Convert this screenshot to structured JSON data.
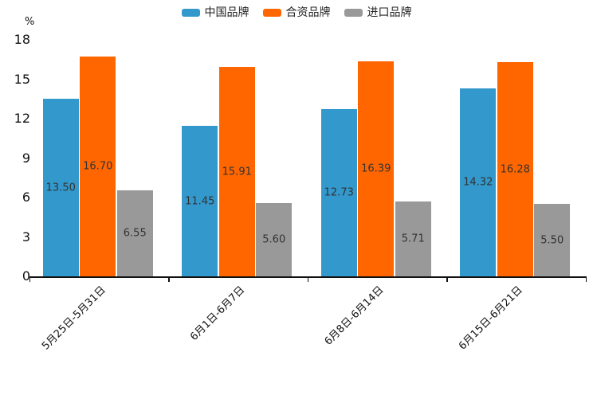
{
  "chart_data": {
    "type": "bar",
    "title": "",
    "ylabel": "%",
    "xlabel": "",
    "categories": [
      "5月25日-5月31日",
      "6月1日-6月7日",
      "6月8日-6月14日",
      "6月15日-6月21日"
    ],
    "series": [
      {
        "name": "中国品牌",
        "color": "#3398CC",
        "values": [
          13.5,
          11.45,
          12.73,
          14.32
        ]
      },
      {
        "name": "合资品牌",
        "color": "#FF6600",
        "values": [
          16.7,
          15.91,
          16.39,
          16.28
        ]
      },
      {
        "name": "进口品牌",
        "color": "#999999",
        "values": [
          6.55,
          5.6,
          5.71,
          5.5
        ]
      }
    ],
    "value_label_decimals": 2,
    "yticks": [
      0,
      3,
      6,
      9,
      12,
      15,
      18
    ],
    "ylim": [
      0,
      18
    ],
    "legend_position": "top",
    "grid": false,
    "axis_color": "#111111",
    "value_label_color": "#333333"
  }
}
